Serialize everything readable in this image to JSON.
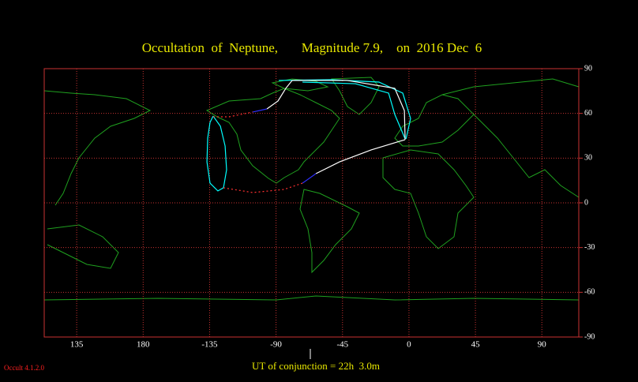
{
  "chart_data": {
    "type": "map",
    "title": "Occultation  of  Neptune,       Magnitude 7.9,    on  2016 Dec  6",
    "footer": "UT of conjunction = 22h  3.0m",
    "version": "Occult 4.1.2.0",
    "xlim": [
      113,
      475
    ],
    "ylim": [
      -90,
      90
    ],
    "xticks": [
      {
        "value": 135,
        "label": "135"
      },
      {
        "value": 180,
        "label": "180"
      },
      {
        "value": 225,
        "label": "-135"
      },
      {
        "value": 270,
        "label": "-90"
      },
      {
        "value": 315,
        "label": "-45"
      },
      {
        "value": 360,
        "label": "0"
      },
      {
        "value": 405,
        "label": "45"
      },
      {
        "value": 450,
        "label": "90"
      }
    ],
    "yticks": [
      90,
      60,
      30,
      0,
      -30,
      -60,
      -90
    ],
    "grid": true,
    "series": [
      {
        "color": "#00ffff",
        "style": "solid",
        "x": [
          227.4,
          232.3,
          235.5,
          236.5,
          234.4,
          230.6,
          225.3,
          223.2,
          223.7,
          225.3,
          227.4
        ],
        "values": [
          58.2,
          51.4,
          38.1,
          22.2,
          10.1,
          8.0,
          13.2,
          27.5,
          43.4,
          54.0,
          58.2
        ]
      },
      {
        "color": "#00ffff",
        "style": "solid",
        "x": [
          271.8,
          307.7,
          339.7,
          355.8,
          361.1,
          358.0
        ],
        "values": [
          82.1,
          82.6,
          81.0,
          73.6,
          56.6,
          42.9
        ]
      },
      {
        "color": "#00ffff",
        "style": "solid",
        "x": [
          287.9,
          323.7,
          346.2,
          350.4,
          357.4
        ],
        "values": [
          81.0,
          79.9,
          73.6,
          59.3,
          42.9
        ]
      },
      {
        "color": "#ffffff",
        "style": "solid",
        "x": [
          276.6,
          280.9,
          318.3,
          350.4,
          356.9,
          357.4
        ],
        "values": [
          76.8,
          82.1,
          82.1,
          76.8,
          61.9,
          42.4
        ]
      },
      {
        "color": "#ffffff",
        "style": "solid",
        "x": [
          297.0,
          313.0,
          334.4,
          357.4
        ],
        "values": [
          19.6,
          27.5,
          35.5,
          42.4
        ]
      },
      {
        "color": "#ffffff",
        "style": "solid",
        "x": [
          276.6,
          271.3,
          263.8
        ],
        "values": [
          76.8,
          68.3,
          63.0
        ]
      },
      {
        "color": "#3030ff",
        "style": "solid",
        "x": [
          254.2,
          263.8
        ],
        "values": [
          60.9,
          63.0
        ]
      },
      {
        "color": "#3030ff",
        "style": "solid",
        "x": [
          287.9,
          297.0
        ],
        "values": [
          13.2,
          19.6
        ]
      },
      {
        "color": "#ff3030",
        "style": "dotted",
        "x": [
          227.4,
          238.1,
          254.2
        ],
        "values": [
          57.7,
          57.7,
          60.9
        ]
      },
      {
        "color": "#ff3030",
        "style": "dotted",
        "x": [
          234.4,
          254.2,
          275.5,
          287.9
        ],
        "values": [
          10.1,
          6.9,
          9.0,
          13.2
        ]
      }
    ]
  }
}
